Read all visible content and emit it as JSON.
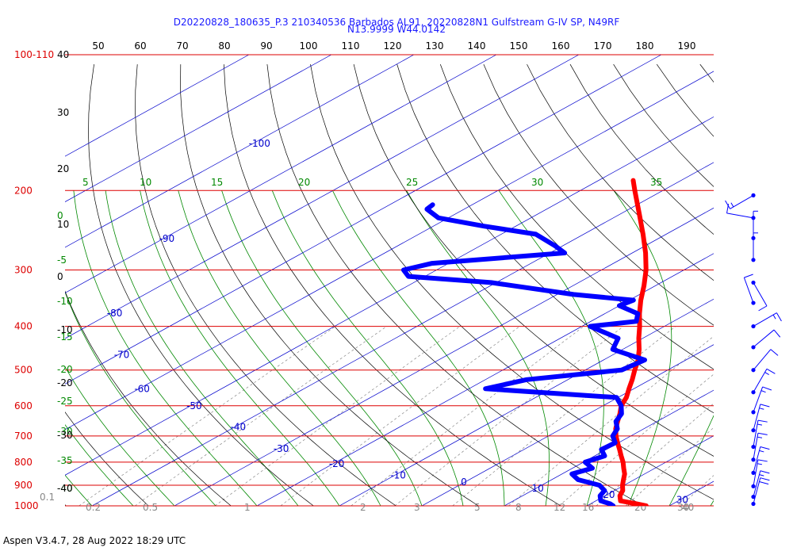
{
  "header": {
    "title_line1": "D20220828_180635_P.3 210340536 Barbados AL91, 20220828N1 Gulfstream G-IV SP, N49RF",
    "title_line2": "N13.9999 W44.0142"
  },
  "footer": {
    "text": "Aspen V3.4.7, 28 Aug 2022  18:29 UTC"
  },
  "colors": {
    "isobar": "#dd0000",
    "isotherm": "#0000cc",
    "dry_adiabat": "#000000",
    "moist_adiabat": "#008800",
    "mixing_ratio": "#888888",
    "temperature": "#ff0000",
    "dewpoint": "#0000ff"
  },
  "chart_data": {
    "type": "line",
    "title": "",
    "xlabel": "",
    "ylabel": "",
    "ylim": [
      1000,
      100
    ],
    "pressure_labels": [
      "100-110",
      "200",
      "300",
      "400",
      "500",
      "600",
      "700",
      "800",
      "900",
      "1000"
    ],
    "pressure_values": [
      100,
      200,
      300,
      400,
      500,
      600,
      700,
      800,
      900,
      1000
    ],
    "top_axis_ticks": [
      "50",
      "60",
      "70",
      "80",
      "90",
      "100",
      "110",
      "120",
      "130",
      "140",
      "150",
      "160",
      "170",
      "180",
      "190"
    ],
    "left_temperature_ticks": [
      "40",
      "30",
      "20",
      "10",
      "0",
      "-10",
      "-20",
      "-30",
      "-40"
    ],
    "isotherm_labels": [
      "-100",
      "-90",
      "-80",
      "-70",
      "-60",
      "-50",
      "-40",
      "-30",
      "-20",
      "-10",
      "0",
      "10",
      "20",
      "30"
    ],
    "moist_adiabat_top_labels": [
      "5",
      "10",
      "15",
      "20",
      "25",
      "30",
      "35"
    ],
    "moist_adiabat_left_labels": [
      "0",
      "-5",
      "-10",
      "-15",
      "-20",
      "-25",
      "-30",
      "-35",
      "-40"
    ],
    "mixing_ratio_labels": [
      "0.1",
      "0.2",
      "0.5",
      "1",
      "2",
      "3",
      "5",
      "8",
      "12",
      "16",
      "20",
      "30",
      "40"
    ],
    "series": [
      {
        "name": "",
        "pressure": [
          1000,
          990,
          975,
          950,
          925,
          900,
          875,
          850,
          825,
          800,
          775,
          750,
          725,
          700,
          675,
          650,
          625,
          600,
          575,
          550,
          525,
          500,
          475,
          450,
          425,
          400,
          375,
          350,
          325,
          300,
          275,
          250,
          225,
          200,
          190
        ],
        "values": [
          27.2,
          25.6,
          23.0,
          21.8,
          21.0,
          19.8,
          18.7,
          17.6,
          16.2,
          14.8,
          13.2,
          11.6,
          9.9,
          8.2,
          6.6,
          5.2,
          3.8,
          2.2,
          1.0,
          -0.6,
          -2.2,
          -4.0,
          -5.8,
          -8.0,
          -10.5,
          -13.0,
          -15.8,
          -18.6,
          -21.4,
          -24.6,
          -28.4,
          -32.8,
          -37.8,
          -43.4,
          -45.8
        ]
      },
      {
        "name": "",
        "pressure": [
          1000,
          990,
          975,
          950,
          925,
          900,
          875,
          850,
          825,
          800,
          775,
          750,
          725,
          700,
          675,
          650,
          625,
          600,
          575,
          550,
          525,
          500,
          475,
          450,
          425,
          400,
          390,
          375,
          360,
          350,
          340,
          320,
          310,
          300,
          290,
          275,
          265,
          250,
          240,
          230,
          220,
          215
        ],
        "values": [
          23.2,
          22.4,
          20.6,
          19.4,
          18.8,
          17.0,
          13.2,
          11.2,
          12.4,
          10.2,
          11.2,
          9.4,
          9.6,
          7.8,
          6.8,
          5.0,
          4.0,
          2.2,
          -0.2,
          -18.0,
          -15.0,
          -5.6,
          -5.0,
          -11.2,
          -13.0,
          -19.0,
          -14.5,
          -16.0,
          -20.0,
          -19.5,
          -28.0,
          -40.6,
          -52.0,
          -54.0,
          -52.0,
          -38.2,
          -41.0,
          -45.8,
          -53.8,
          -61.2,
          -64.5,
          -64.8
        ]
      }
    ],
    "wind_barbs": [
      {
        "pressure": 205,
        "speed_kt": 15,
        "dir_deg": 240
      },
      {
        "pressure": 230,
        "speed_kt": 10,
        "dir_deg": 280
      },
      {
        "pressure": 255,
        "speed_kt": 5,
        "dir_deg": 0
      },
      {
        "pressure": 285,
        "speed_kt": 5,
        "dir_deg": 0
      },
      {
        "pressure": 320,
        "speed_kt": 10,
        "dir_deg": 150
      },
      {
        "pressure": 355,
        "speed_kt": 10,
        "dir_deg": 340
      },
      {
        "pressure": 400,
        "speed_kt": 15,
        "dir_deg": 60
      },
      {
        "pressure": 445,
        "speed_kt": 10,
        "dir_deg": 50
      },
      {
        "pressure": 500,
        "speed_kt": 10,
        "dir_deg": 40
      },
      {
        "pressure": 560,
        "speed_kt": 15,
        "dir_deg": 30
      },
      {
        "pressure": 620,
        "speed_kt": 15,
        "dir_deg": 20
      },
      {
        "pressure": 680,
        "speed_kt": 15,
        "dir_deg": 15
      },
      {
        "pressure": 740,
        "speed_kt": 15,
        "dir_deg": 10
      },
      {
        "pressure": 790,
        "speed_kt": 15,
        "dir_deg": 10
      },
      {
        "pressure": 845,
        "speed_kt": 15,
        "dir_deg": 15
      },
      {
        "pressure": 905,
        "speed_kt": 15,
        "dir_deg": 10
      },
      {
        "pressure": 955,
        "speed_kt": 15,
        "dir_deg": 15
      },
      {
        "pressure": 990,
        "speed_kt": 20,
        "dir_deg": 15
      }
    ]
  }
}
